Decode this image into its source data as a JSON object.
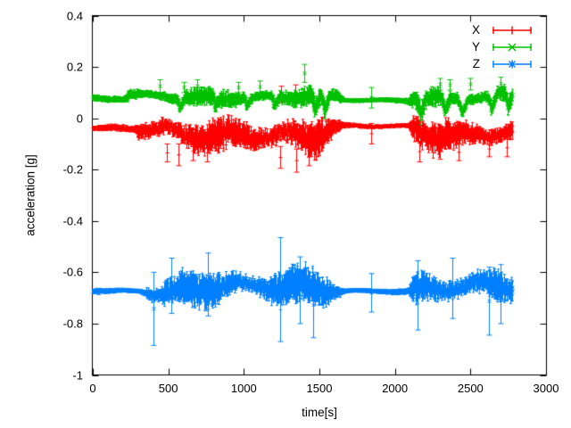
{
  "chart_data": {
    "type": "scatter",
    "style": "errorbars",
    "title": "",
    "xlabel": "time[s]",
    "ylabel": "acceleration [g]",
    "xlim": [
      0,
      3000
    ],
    "ylim": [
      -1,
      0.4
    ],
    "grid": false,
    "legend_position": "top-right-inside",
    "background_color": "#ffffff",
    "border_color": "#000000",
    "xticks": {
      "values": [
        0,
        500,
        1000,
        1500,
        2000,
        2500,
        3000
      ],
      "labels": [
        "0",
        "500",
        "1000",
        "1500",
        "2000",
        "2500",
        "3000"
      ]
    },
    "yticks": {
      "values": [
        0.4,
        0.2,
        0,
        -0.2,
        -0.4,
        -0.6,
        -0.8,
        -1
      ],
      "labels": [
        "0.4",
        "0.2",
        "0",
        "-0.2",
        "-0.4",
        "-0.6",
        "-0.8",
        "-1"
      ]
    },
    "time_range_of_data": [
      0,
      2780
    ],
    "segments_format": [
      "t_start_s",
      "t_end_s",
      "mean_g",
      "noise_amp_g",
      "errorbar_halfwidth_g"
    ],
    "spikes_format": [
      "t_s",
      "low_g",
      "high_g"
    ],
    "series": [
      {
        "name": "X",
        "color": "#ff0000",
        "marker": "plus",
        "segments": [
          [
            0,
            270,
            -0.042,
            0.006,
            0.01
          ],
          [
            270,
            420,
            -0.05,
            0.02,
            0.035
          ],
          [
            420,
            560,
            -0.055,
            0.03,
            0.05
          ],
          [
            560,
            700,
            -0.06,
            0.035,
            0.06
          ],
          [
            700,
            860,
            -0.065,
            0.03,
            0.055
          ],
          [
            860,
            1000,
            -0.05,
            0.025,
            0.045
          ],
          [
            1000,
            1150,
            -0.055,
            0.03,
            0.05
          ],
          [
            1150,
            1330,
            -0.065,
            0.035,
            0.065
          ],
          [
            1330,
            1500,
            -0.07,
            0.035,
            0.065
          ],
          [
            1500,
            1560,
            -0.055,
            0.02,
            0.04
          ],
          [
            1560,
            1620,
            -0.04,
            0.012,
            0.02
          ],
          [
            1620,
            2085,
            -0.032,
            0.005,
            0.009
          ],
          [
            2085,
            2200,
            -0.05,
            0.03,
            0.05
          ],
          [
            2200,
            2350,
            -0.055,
            0.03,
            0.055
          ],
          [
            2350,
            2500,
            -0.06,
            0.03,
            0.05
          ],
          [
            2500,
            2650,
            -0.05,
            0.028,
            0.05
          ],
          [
            2650,
            2780,
            -0.045,
            0.022,
            0.042
          ]
        ],
        "spikes": [
          [
            490,
            -0.17,
            -0.1
          ],
          [
            565,
            -0.185,
            -0.1
          ],
          [
            660,
            -0.165,
            -0.09
          ],
          [
            755,
            -0.17,
            -0.1
          ],
          [
            1240,
            -0.195,
            -0.11
          ],
          [
            1245,
            0.06,
            0.125
          ],
          [
            1340,
            0.07,
            0.13
          ],
          [
            1345,
            -0.21,
            -0.12
          ],
          [
            1430,
            -0.185,
            -0.11
          ],
          [
            1840,
            -0.1,
            -0.02
          ],
          [
            2160,
            -0.17,
            -0.09
          ],
          [
            2300,
            -0.16,
            -0.09
          ],
          [
            2420,
            -0.165,
            -0.1
          ],
          [
            2620,
            -0.15,
            -0.09
          ],
          [
            2740,
            -0.15,
            -0.08
          ]
        ]
      },
      {
        "name": "Y",
        "color": "#00c000",
        "marker": "times",
        "segments": [
          [
            0,
            205,
            0.075,
            0.006,
            0.01
          ],
          [
            205,
            420,
            0.09,
            0.012,
            0.022
          ],
          [
            420,
            555,
            0.09,
            0.015,
            0.028
          ],
          [
            555,
            570,
            0.045,
            0.01,
            0.025
          ],
          [
            570,
            790,
            0.088,
            0.015,
            0.03
          ],
          [
            790,
            805,
            0.045,
            0.01,
            0.025
          ],
          [
            805,
            1000,
            0.085,
            0.015,
            0.03
          ],
          [
            1000,
            1015,
            0.05,
            0.01,
            0.025
          ],
          [
            1015,
            1180,
            0.08,
            0.015,
            0.03
          ],
          [
            1180,
            1195,
            0.04,
            0.01,
            0.025
          ],
          [
            1195,
            1445,
            0.08,
            0.017,
            0.032
          ],
          [
            1445,
            1465,
            0.02,
            0.012,
            0.028
          ],
          [
            1465,
            1510,
            0.07,
            0.015,
            0.03
          ],
          [
            1510,
            1530,
            0.015,
            0.012,
            0.028
          ],
          [
            1530,
            1620,
            0.08,
            0.012,
            0.022
          ],
          [
            1620,
            2085,
            0.07,
            0.005,
            0.009
          ],
          [
            2085,
            2140,
            0.085,
            0.015,
            0.03
          ],
          [
            2140,
            2165,
            0.02,
            0.012,
            0.03
          ],
          [
            2165,
            2300,
            0.085,
            0.016,
            0.032
          ],
          [
            2300,
            2325,
            0.025,
            0.012,
            0.03
          ],
          [
            2325,
            2415,
            0.08,
            0.016,
            0.03
          ],
          [
            2415,
            2440,
            0.02,
            0.012,
            0.03
          ],
          [
            2440,
            2610,
            0.085,
            0.016,
            0.032
          ],
          [
            2610,
            2635,
            0.025,
            0.012,
            0.03
          ],
          [
            2635,
            2725,
            0.09,
            0.016,
            0.032
          ],
          [
            2725,
            2745,
            0.03,
            0.012,
            0.03
          ],
          [
            2745,
            2780,
            0.1,
            0.015,
            0.03
          ]
        ],
        "spikes": [
          [
            440,
            0.1,
            0.15
          ],
          [
            600,
            0.1,
            0.14
          ],
          [
            690,
            0.1,
            0.15
          ],
          [
            960,
            0.1,
            0.14
          ],
          [
            1105,
            0.1,
            0.145
          ],
          [
            1400,
            0.14,
            0.21
          ],
          [
            1840,
            0.04,
            0.12
          ],
          [
            2300,
            0.11,
            0.155
          ],
          [
            2360,
            0.11,
            0.15
          ],
          [
            2500,
            0.11,
            0.155
          ],
          [
            2700,
            0.11,
            0.16
          ]
        ]
      },
      {
        "name": "Z",
        "color": "#0080ff",
        "marker": "asterisk",
        "segments": [
          [
            0,
            320,
            -0.672,
            0.005,
            0.009
          ],
          [
            320,
            430,
            -0.668,
            0.02,
            0.04
          ],
          [
            430,
            560,
            -0.665,
            0.03,
            0.05
          ],
          [
            560,
            700,
            -0.66,
            0.03,
            0.055
          ],
          [
            700,
            950,
            -0.652,
            0.032,
            0.06
          ],
          [
            950,
            1150,
            -0.665,
            0.028,
            0.05
          ],
          [
            1150,
            1360,
            -0.668,
            0.035,
            0.065
          ],
          [
            1360,
            1550,
            -0.668,
            0.03,
            0.06
          ],
          [
            1550,
            1630,
            -0.67,
            0.018,
            0.035
          ],
          [
            1630,
            2085,
            -0.672,
            0.005,
            0.009
          ],
          [
            2085,
            2300,
            -0.663,
            0.028,
            0.055
          ],
          [
            2300,
            2520,
            -0.658,
            0.03,
            0.058
          ],
          [
            2520,
            2700,
            -0.663,
            0.028,
            0.055
          ],
          [
            2700,
            2780,
            -0.668,
            0.02,
            0.04
          ]
        ],
        "spikes": [
          [
            400,
            -0.885,
            -0.6
          ],
          [
            520,
            -0.76,
            -0.545
          ],
          [
            760,
            -0.77,
            -0.525
          ],
          [
            1240,
            -0.87,
            -0.465
          ],
          [
            1370,
            -0.8,
            -0.54
          ],
          [
            1460,
            -0.855,
            -0.6
          ],
          [
            1840,
            -0.755,
            -0.605
          ],
          [
            2150,
            -0.825,
            -0.555
          ],
          [
            2380,
            -0.78,
            -0.545
          ],
          [
            2620,
            -0.845,
            -0.58
          ],
          [
            2700,
            -0.8,
            -0.57
          ]
        ]
      }
    ]
  }
}
